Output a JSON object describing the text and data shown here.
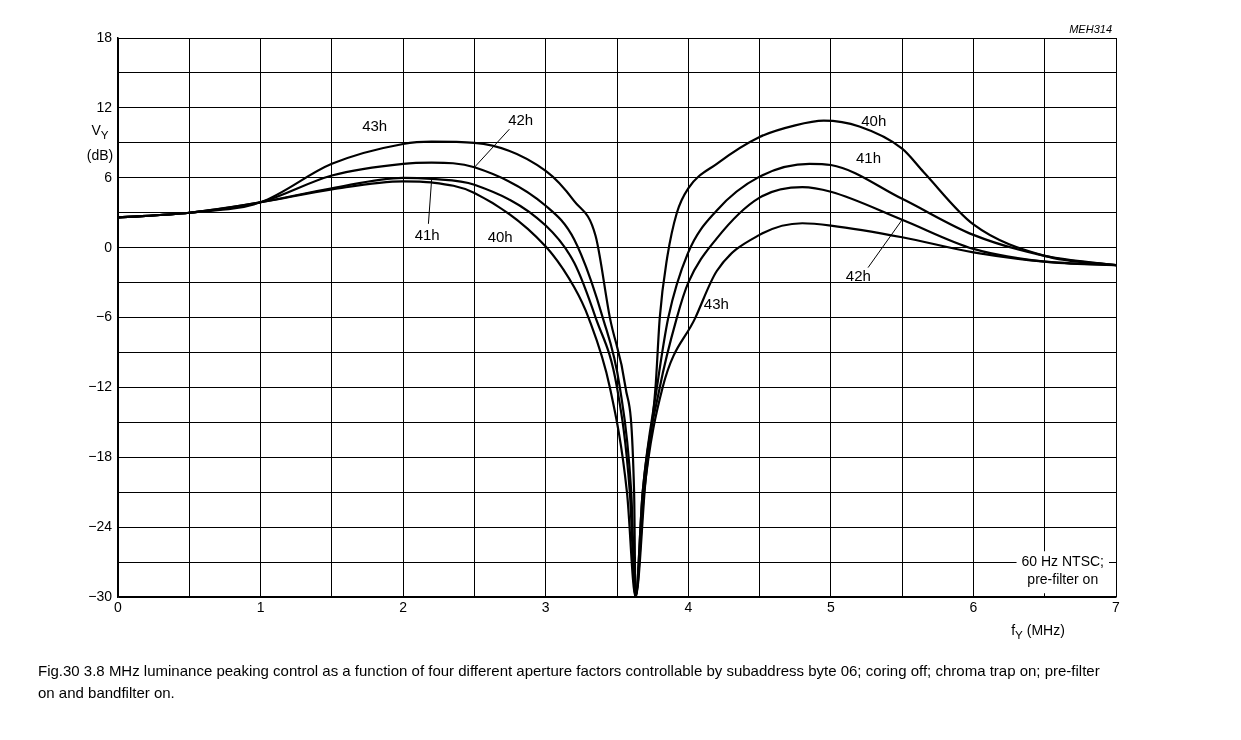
{
  "chart_data": {
    "type": "line",
    "title": "Fig.30  3.8 MHz luminance peaking control as a function of four different aperture factors controllable by subaddress byte 06; coring off; chroma trap on; pre-filter on and bandfilter on.",
    "xlabel": "f$_{Y}$ (MHz)",
    "ylabel": "V$_{Y}$ (dB)",
    "xlim": [
      0,
      7
    ],
    "ylim": [
      -30,
      18
    ],
    "xticks": [
      0,
      {
        "value": 0.5,
        "label": null
      },
      1,
      {
        "value": 1.5,
        "label": null
      },
      2,
      {
        "value": 2.5,
        "label": null
      },
      3,
      {
        "value": 3.5,
        "label": null
      },
      4,
      {
        "value": 4.5,
        "label": null
      },
      5,
      {
        "value": 5.5,
        "label": null
      },
      6,
      {
        "value": 6.5,
        "label": null
      },
      7
    ],
    "yticks": [
      -30,
      {
        "value": -27,
        "label": null
      },
      -24,
      {
        "value": -21,
        "label": null
      },
      -18,
      {
        "value": -15,
        "label": null
      },
      -12,
      {
        "value": -9,
        "label": null
      },
      -6,
      {
        "value": -3,
        "label": null
      },
      0,
      {
        "value": 3,
        "label": null
      },
      6,
      {
        "value": 9,
        "label": null
      },
      12,
      {
        "value": 15,
        "label": null
      },
      18
    ],
    "grid": true,
    "marker": "none",
    "line_style": "solid",
    "legend": false,
    "series": [
      {
        "name": "40h",
        "color": "#000000",
        "x": [
          0,
          0.5,
          1,
          1.5,
          2,
          2.2,
          2.5,
          3,
          3.2,
          3.3,
          3.45,
          3.57,
          3.63,
          3.7,
          3.77,
          3.8,
          3.85,
          3.92,
          4.0,
          4.2,
          4.5,
          4.75,
          4.95,
          5.2,
          5.5,
          5.65,
          6,
          6.5,
          7
        ],
        "values": [
          2.6,
          3.0,
          3.9,
          5.0,
          5.7,
          5.6,
          4.7,
          0.1,
          -3.4,
          -6,
          -12,
          -21,
          -30,
          -20,
          -12,
          -6,
          -1,
          3,
          5.1,
          7.2,
          9.5,
          10.5,
          10.9,
          10.4,
          8.5,
          6.5,
          2.0,
          -0.7,
          -1.5
        ]
      },
      {
        "name": "41h",
        "color": "#000000",
        "x": [
          0,
          0.5,
          1,
          1.5,
          2,
          2.2,
          2.5,
          3,
          3.2,
          3.35,
          3.5,
          3.59,
          3.63,
          3.68,
          3.78,
          3.86,
          4.0,
          4.2,
          4.5,
          4.85,
          5,
          5.5,
          6,
          6.5,
          7
        ],
        "values": [
          2.6,
          3.0,
          3.9,
          5.1,
          6.0,
          5.9,
          5.4,
          1.9,
          -1.3,
          -6,
          -12,
          -21,
          -30,
          -21,
          -12,
          -6,
          -0.4,
          3.2,
          6.1,
          7.2,
          7.1,
          4.2,
          1.1,
          -0.7,
          -1.5
        ]
      },
      {
        "name": "42h",
        "color": "#000000",
        "x": [
          0,
          0.5,
          1,
          1.5,
          2,
          2.2,
          2.5,
          3,
          3.2,
          3.4,
          3.52,
          3.6,
          3.63,
          3.68,
          3.8,
          3.92,
          4.0,
          4.2,
          4.5,
          4.8,
          5,
          5.5,
          6,
          6.5,
          7
        ],
        "values": [
          2.6,
          3.0,
          3.9,
          6.2,
          7.2,
          7.3,
          6.9,
          3.6,
          0.7,
          -6,
          -12,
          -21,
          -30,
          -21,
          -12,
          -6,
          -3.0,
          0.8,
          4.3,
          5.2,
          4.8,
          2.4,
          -0.1,
          -1.2,
          -1.5
        ]
      },
      {
        "name": "43h",
        "color": "#000000",
        "x": [
          0,
          0.5,
          1,
          1.5,
          2,
          2.2,
          2.5,
          3,
          3.2,
          3.35,
          3.45,
          3.56,
          3.62,
          3.63,
          3.69,
          3.82,
          4.05,
          4.2,
          4.5,
          4.8,
          5,
          5.5,
          6,
          6.5,
          7
        ],
        "values": [
          2.6,
          3.0,
          3.9,
          7.2,
          8.9,
          9.1,
          9.0,
          6.6,
          4.0,
          1.0,
          -6,
          -12,
          -21,
          -30,
          -21,
          -12,
          -6,
          -2.0,
          1.1,
          2.1,
          1.9,
          0.9,
          -0.4,
          -1.2,
          -1.5
        ]
      }
    ],
    "annotations": [
      "MEH314",
      "60 Hz NTSC;\npre-filter on"
    ]
  }
}
